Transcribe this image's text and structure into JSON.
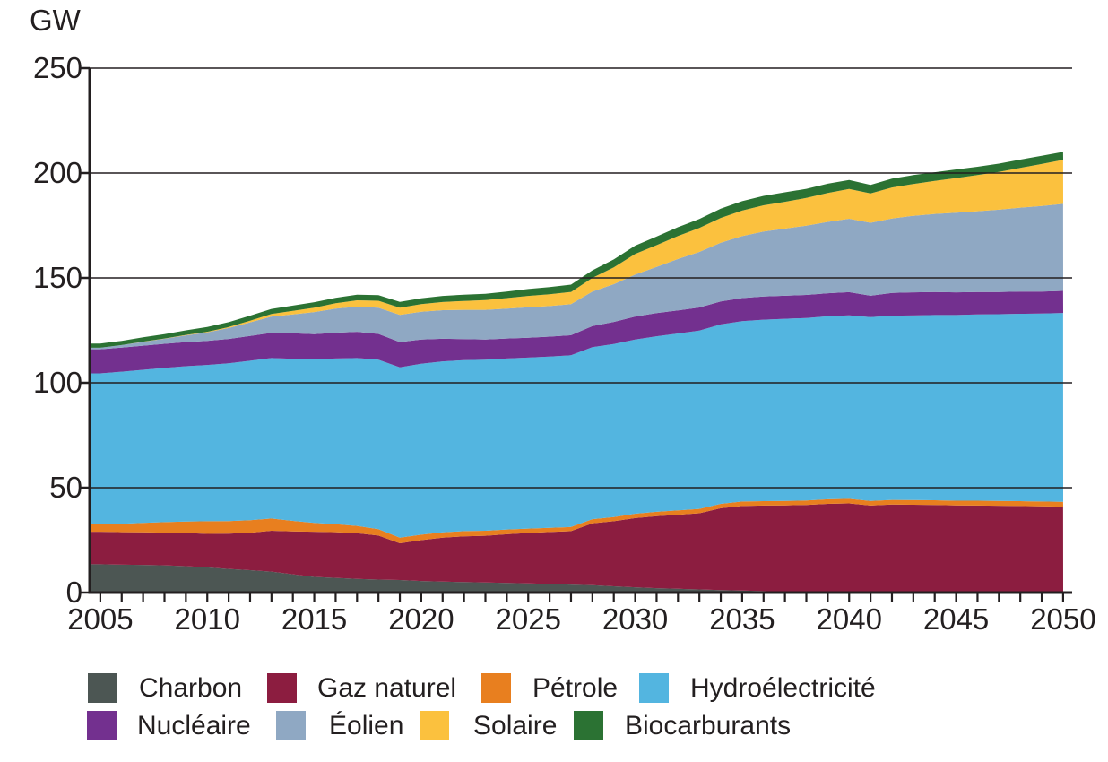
{
  "page": {
    "background": "#ffffff",
    "text_color": "#231f20"
  },
  "axis": {
    "unit_label": "GW",
    "y_tick_labels": [
      "0",
      "50",
      "100",
      "150",
      "200",
      "250"
    ],
    "x_tick_labels": [
      "2005",
      "2010",
      "2015",
      "2020",
      "2025",
      "2030",
      "2035",
      "2040",
      "2045",
      "2050"
    ]
  },
  "chart_data": {
    "type": "area",
    "stacked": true,
    "title": "",
    "ylabel": "GW",
    "xlabel": "",
    "ylim": [
      0,
      250
    ],
    "xlim": [
      2005,
      2050
    ],
    "grid": true,
    "legend_position": "bottom",
    "x": [
      2005,
      2006,
      2007,
      2008,
      2009,
      2010,
      2011,
      2012,
      2013,
      2014,
      2015,
      2016,
      2017,
      2018,
      2019,
      2020,
      2021,
      2022,
      2023,
      2024,
      2025,
      2026,
      2027,
      2028,
      2029,
      2030,
      2031,
      2032,
      2033,
      2034,
      2035,
      2036,
      2037,
      2038,
      2039,
      2040,
      2041,
      2042,
      2043,
      2044,
      2045,
      2046,
      2047,
      2048,
      2049,
      2050
    ],
    "series": [
      {
        "id": "charbon",
        "name": "Charbon",
        "color": "#4C5653",
        "values": [
          13.5,
          13.3,
          13.2,
          13.0,
          12.6,
          12.0,
          11.3,
          10.7,
          10.0,
          8.7,
          7.5,
          7.0,
          6.5,
          6.2,
          6.0,
          5.5,
          5.2,
          5.0,
          4.8,
          4.6,
          4.4,
          4.1,
          3.8,
          3.5,
          3.0,
          2.5,
          2.1,
          1.8,
          1.5,
          1.2,
          1.0,
          0.7,
          0.3,
          0.0,
          0.0,
          0.0,
          0.0,
          0.0,
          0.0,
          0.0,
          0.0,
          0.0,
          0.0,
          0.0,
          0.0,
          0.0
        ]
      },
      {
        "id": "gaz-naturel",
        "name": "Gaz naturel",
        "color": "#8C1D40",
        "values": [
          15.5,
          15.5,
          15.5,
          15.6,
          15.8,
          16.0,
          16.8,
          17.8,
          19.5,
          20.5,
          21.5,
          21.8,
          21.8,
          21.0,
          17.5,
          19.5,
          21.0,
          21.8,
          22.3,
          23.2,
          24.0,
          24.8,
          25.5,
          29.5,
          31.0,
          33.0,
          34.3,
          35.3,
          36.3,
          39.0,
          40.3,
          40.8,
          41.3,
          41.8,
          42.3,
          42.5,
          41.5,
          42.0,
          41.9,
          41.8,
          41.6,
          41.5,
          41.4,
          41.3,
          41.1,
          41.0
        ]
      },
      {
        "id": "petrole",
        "name": "Pétrole",
        "color": "#E87F1F",
        "values": [
          3.5,
          4.0,
          4.5,
          5.0,
          5.5,
          6.0,
          6.0,
          6.0,
          5.8,
          5.0,
          4.2,
          3.8,
          3.5,
          3.0,
          2.7,
          2.6,
          2.5,
          2.5,
          2.4,
          2.3,
          2.1,
          2.0,
          2.0,
          2.0,
          2.0,
          2.1,
          2.1,
          2.1,
          2.1,
          2.1,
          2.1,
          2.1,
          2.1,
          2.1,
          2.2,
          2.2,
          2.2,
          2.2,
          2.2,
          2.2,
          2.2,
          2.3,
          2.3,
          2.3,
          2.3,
          2.3
        ]
      },
      {
        "id": "hydroelectricite",
        "name": "Hydroélectricité",
        "color": "#53B5E0",
        "values": [
          72.0,
          72.5,
          73.0,
          73.5,
          74.0,
          74.5,
          75.2,
          76.0,
          76.5,
          77.2,
          78.0,
          79.0,
          80.0,
          80.8,
          81.2,
          81.5,
          81.5,
          81.5,
          81.5,
          81.5,
          81.5,
          81.6,
          81.8,
          82.0,
          82.5,
          83.0,
          83.7,
          84.3,
          85.0,
          85.5,
          86.0,
          86.5,
          86.8,
          87.0,
          87.2,
          87.5,
          87.6,
          87.8,
          88.0,
          88.3,
          88.5,
          88.8,
          89.0,
          89.3,
          89.6,
          90.0
        ]
      },
      {
        "id": "nucleaire",
        "name": "Nucléaire",
        "color": "#73308F",
        "values": [
          11.5,
          11.5,
          11.5,
          11.5,
          11.5,
          11.5,
          11.6,
          11.8,
          12.0,
          12.2,
          12.0,
          12.3,
          12.5,
          12.3,
          12.0,
          11.5,
          10.8,
          10.0,
          9.6,
          9.5,
          9.5,
          9.5,
          9.6,
          10.0,
          10.5,
          11.0,
          11.0,
          11.0,
          11.0,
          11.0,
          11.0,
          11.0,
          11.0,
          11.0,
          11.0,
          11.0,
          10.2,
          10.8,
          11.0,
          11.0,
          10.8,
          10.7,
          10.6,
          10.6,
          10.5,
          10.5
        ]
      },
      {
        "id": "eolien",
        "name": "Éolien",
        "color": "#8FA8C3",
        "values": [
          0.7,
          1.2,
          1.8,
          2.4,
          3.2,
          4.0,
          5.2,
          6.5,
          7.8,
          9.0,
          10.5,
          11.5,
          12.0,
          12.5,
          13.0,
          13.3,
          13.6,
          14.0,
          14.2,
          14.3,
          14.5,
          14.6,
          14.8,
          16.5,
          18.0,
          20.0,
          22.0,
          24.5,
          26.5,
          28.0,
          29.5,
          31.0,
          32.0,
          33.0,
          34.0,
          35.0,
          34.8,
          35.5,
          36.5,
          37.2,
          38.0,
          38.5,
          39.2,
          40.0,
          40.8,
          41.5
        ]
      },
      {
        "id": "solaire",
        "name": "Solaire",
        "color": "#FBC13E",
        "values": [
          0.0,
          0.0,
          0.1,
          0.1,
          0.2,
          0.3,
          0.5,
          0.8,
          1.2,
          1.7,
          2.1,
          2.5,
          3.0,
          3.3,
          3.4,
          3.6,
          3.9,
          4.2,
          4.6,
          5.0,
          5.4,
          5.6,
          5.8,
          6.5,
          8.0,
          9.8,
          10.4,
          11.0,
          11.4,
          11.8,
          12.2,
          12.5,
          12.8,
          13.2,
          13.8,
          14.2,
          14.0,
          14.8,
          15.2,
          15.8,
          16.5,
          17.2,
          18.0,
          19.0,
          20.0,
          21.0
        ]
      },
      {
        "id": "biocarburants",
        "name": "Biocarburants",
        "color": "#2B7233",
        "values": [
          2.0,
          2.0,
          2.1,
          2.1,
          2.2,
          2.3,
          2.3,
          2.4,
          2.4,
          2.5,
          2.6,
          2.6,
          2.7,
          2.7,
          2.8,
          2.8,
          2.9,
          3.0,
          3.0,
          3.1,
          3.3,
          3.4,
          3.5,
          3.6,
          3.8,
          4.0,
          4.1,
          4.2,
          4.3,
          4.4,
          4.5,
          4.5,
          4.5,
          4.4,
          4.4,
          4.3,
          4.0,
          4.2,
          4.2,
          4.1,
          4.1,
          4.0,
          4.0,
          3.9,
          3.9,
          3.8
        ]
      }
    ]
  }
}
